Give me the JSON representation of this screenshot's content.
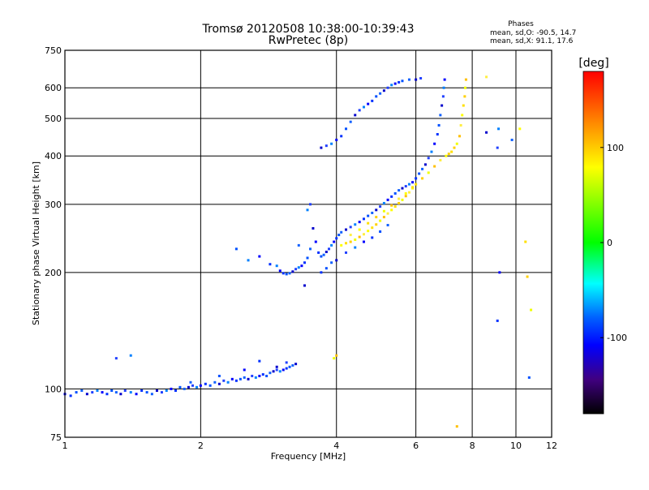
{
  "chart_data": {
    "type": "scatter",
    "title": "Tromsø 20120508 10:38:00-10:39:43",
    "subtitle": "RwPretec (8p)",
    "xlabel": "Frequency [MHz]",
    "ylabel": "Stationary phase Virtual Height [km]",
    "x_scale": "log",
    "y_scale": "log",
    "xlim": [
      1,
      12
    ],
    "ylim": [
      75,
      750
    ],
    "x_ticks": [
      1,
      2,
      4,
      6,
      8,
      10,
      12
    ],
    "y_ticks": [
      75,
      100,
      200,
      300,
      400,
      500,
      600,
      750
    ],
    "x_grid": [
      2,
      4,
      6,
      8,
      10
    ],
    "y_grid": [
      100,
      200,
      300,
      400,
      500,
      600
    ],
    "grid": true,
    "phases_header": "Phases",
    "phases_lines": [
      "mean, sd,O: -90.5, 14.7",
      "mean, sd,X:  91.1, 17.6"
    ],
    "colorbar": {
      "label": "[deg]",
      "min": -180,
      "max": 180,
      "ticks": [
        100,
        0,
        -100
      ],
      "tick_labels": [
        "100",
        "0",
        "-100"
      ],
      "colors": [
        "#ff0000",
        "#ff8000",
        "#ffff00",
        "#00ff00",
        "#00ffff",
        "#0060ff",
        "#0000ff",
        "#400080",
        "#000000"
      ],
      "placement": "right"
    },
    "series": [
      {
        "mode": "O",
        "color_hint": "blue",
        "points": [
          [
            1.0,
            97
          ],
          [
            1.03,
            96
          ],
          [
            1.06,
            98
          ],
          [
            1.09,
            99
          ],
          [
            1.12,
            97
          ],
          [
            1.15,
            98
          ],
          [
            1.18,
            99
          ],
          [
            1.21,
            98
          ],
          [
            1.24,
            97
          ],
          [
            1.27,
            99
          ],
          [
            1.3,
            98
          ],
          [
            1.33,
            97
          ],
          [
            1.36,
            99
          ],
          [
            1.4,
            98
          ],
          [
            1.44,
            97
          ],
          [
            1.48,
            99
          ],
          [
            1.52,
            98
          ],
          [
            1.56,
            97
          ],
          [
            1.6,
            99
          ],
          [
            1.64,
            98
          ],
          [
            1.68,
            99
          ],
          [
            1.72,
            100
          ],
          [
            1.76,
            99
          ],
          [
            1.8,
            101
          ],
          [
            1.84,
            100
          ],
          [
            1.88,
            101
          ],
          [
            1.92,
            102
          ],
          [
            1.96,
            101
          ],
          [
            2.0,
            102
          ],
          [
            2.05,
            103
          ],
          [
            2.1,
            102
          ],
          [
            2.15,
            104
          ],
          [
            2.2,
            103
          ],
          [
            2.25,
            105
          ],
          [
            2.3,
            104
          ],
          [
            2.35,
            106
          ],
          [
            2.4,
            105
          ],
          [
            2.45,
            106
          ],
          [
            2.5,
            107
          ],
          [
            2.55,
            106
          ],
          [
            2.6,
            108
          ],
          [
            2.65,
            107
          ],
          [
            2.7,
            108
          ],
          [
            2.75,
            109
          ],
          [
            2.8,
            108
          ],
          [
            2.85,
            110
          ],
          [
            2.9,
            111
          ],
          [
            2.95,
            112
          ],
          [
            3.0,
            111
          ],
          [
            3.05,
            112
          ],
          [
            3.1,
            113
          ],
          [
            3.15,
            114
          ],
          [
            3.2,
            115
          ],
          [
            3.25,
            116
          ],
          [
            1.3,
            120
          ],
          [
            1.4,
            122
          ],
          [
            2.5,
            112
          ],
          [
            2.7,
            118
          ],
          [
            2.2,
            108
          ],
          [
            1.9,
            104
          ],
          [
            2.95,
            114
          ],
          [
            3.1,
            117
          ],
          [
            2.95,
            208
          ],
          [
            3.0,
            202
          ],
          [
            3.05,
            199
          ],
          [
            3.1,
            198
          ],
          [
            3.15,
            199
          ],
          [
            3.2,
            201
          ],
          [
            3.25,
            204
          ],
          [
            3.3,
            206
          ],
          [
            3.35,
            208
          ],
          [
            3.4,
            212
          ],
          [
            3.45,
            218
          ],
          [
            3.5,
            230
          ],
          [
            3.55,
            260
          ],
          [
            3.5,
            300
          ],
          [
            3.45,
            290
          ],
          [
            3.6,
            240
          ],
          [
            3.65,
            225
          ],
          [
            3.7,
            220
          ],
          [
            3.75,
            222
          ],
          [
            3.8,
            226
          ],
          [
            3.85,
            230
          ],
          [
            3.9,
            235
          ],
          [
            3.95,
            240
          ],
          [
            4.0,
            245
          ],
          [
            4.05,
            250
          ],
          [
            4.1,
            254
          ],
          [
            4.2,
            258
          ],
          [
            4.3,
            262
          ],
          [
            4.4,
            266
          ],
          [
            4.5,
            270
          ],
          [
            4.6,
            275
          ],
          [
            4.7,
            280
          ],
          [
            4.8,
            285
          ],
          [
            4.9,
            290
          ],
          [
            5.0,
            296
          ],
          [
            5.1,
            302
          ],
          [
            5.2,
            308
          ],
          [
            5.3,
            314
          ],
          [
            5.4,
            320
          ],
          [
            5.5,
            326
          ],
          [
            5.6,
            330
          ],
          [
            5.7,
            334
          ],
          [
            5.8,
            338
          ],
          [
            5.9,
            342
          ],
          [
            6.0,
            350
          ],
          [
            6.1,
            360
          ],
          [
            6.2,
            370
          ],
          [
            6.3,
            380
          ],
          [
            6.4,
            395
          ],
          [
            6.5,
            410
          ],
          [
            6.6,
            430
          ],
          [
            6.7,
            455
          ],
          [
            6.75,
            480
          ],
          [
            6.8,
            510
          ],
          [
            6.85,
            540
          ],
          [
            6.9,
            570
          ],
          [
            6.92,
            600
          ],
          [
            6.95,
            630
          ],
          [
            3.7,
            200
          ],
          [
            3.8,
            205
          ],
          [
            3.9,
            212
          ],
          [
            4.0,
            215
          ],
          [
            4.2,
            225
          ],
          [
            4.4,
            232
          ],
          [
            4.6,
            240
          ],
          [
            4.8,
            246
          ],
          [
            5.0,
            255
          ],
          [
            5.2,
            265
          ],
          [
            3.7,
            420
          ],
          [
            3.8,
            425
          ],
          [
            3.9,
            430
          ],
          [
            4.0,
            440
          ],
          [
            4.1,
            450
          ],
          [
            4.2,
            470
          ],
          [
            4.3,
            490
          ],
          [
            4.4,
            510
          ],
          [
            4.5,
            525
          ],
          [
            4.6,
            535
          ],
          [
            4.7,
            545
          ],
          [
            4.8,
            555
          ],
          [
            4.9,
            570
          ],
          [
            5.0,
            580
          ],
          [
            5.1,
            590
          ],
          [
            5.2,
            600
          ],
          [
            5.3,
            610
          ],
          [
            5.4,
            615
          ],
          [
            5.5,
            620
          ],
          [
            5.6,
            625
          ],
          [
            5.8,
            630
          ],
          [
            6.0,
            630
          ],
          [
            6.15,
            635
          ],
          [
            2.55,
            215
          ],
          [
            2.7,
            220
          ],
          [
            2.85,
            210
          ],
          [
            2.4,
            230
          ],
          [
            3.3,
            235
          ],
          [
            3.4,
            185
          ],
          [
            9.1,
            420
          ],
          [
            9.15,
            470
          ],
          [
            9.2,
            200
          ],
          [
            9.1,
            150
          ],
          [
            10.7,
            107
          ],
          [
            9.8,
            440
          ],
          [
            8.6,
            460
          ]
        ]
      },
      {
        "mode": "X",
        "color_hint": "yellow",
        "points": [
          [
            4.1,
            235
          ],
          [
            4.2,
            238
          ],
          [
            4.3,
            240
          ],
          [
            4.4,
            243
          ],
          [
            4.5,
            247
          ],
          [
            4.6,
            251
          ],
          [
            4.7,
            256
          ],
          [
            4.8,
            261
          ],
          [
            4.9,
            266
          ],
          [
            5.0,
            272
          ],
          [
            5.1,
            278
          ],
          [
            5.2,
            284
          ],
          [
            5.3,
            290
          ],
          [
            5.4,
            296
          ],
          [
            5.5,
            302
          ],
          [
            5.6,
            308
          ],
          [
            5.7,
            315
          ],
          [
            5.8,
            322
          ],
          [
            5.9,
            330
          ],
          [
            6.0,
            338
          ],
          [
            6.2,
            350
          ],
          [
            6.4,
            362
          ],
          [
            6.6,
            376
          ],
          [
            6.8,
            390
          ],
          [
            7.0,
            400
          ],
          [
            7.2,
            410
          ],
          [
            7.3,
            420
          ],
          [
            7.4,
            430
          ],
          [
            7.5,
            450
          ],
          [
            7.55,
            480
          ],
          [
            7.6,
            510
          ],
          [
            7.65,
            540
          ],
          [
            7.7,
            570
          ],
          [
            7.72,
            600
          ],
          [
            7.75,
            630
          ],
          [
            4.3,
            250
          ],
          [
            4.5,
            258
          ],
          [
            4.7,
            268
          ],
          [
            4.9,
            278
          ],
          [
            5.1,
            288
          ],
          [
            5.3,
            298
          ],
          [
            5.5,
            310
          ],
          [
            5.7,
            320
          ],
          [
            5.9,
            332
          ],
          [
            7.1,
            405
          ],
          [
            3.95,
            120
          ],
          [
            4.0,
            122
          ],
          [
            8.6,
            640
          ],
          [
            10.2,
            470
          ],
          [
            10.5,
            240
          ],
          [
            10.6,
            195
          ],
          [
            10.8,
            160
          ],
          [
            7.4,
            80
          ]
        ]
      }
    ]
  }
}
